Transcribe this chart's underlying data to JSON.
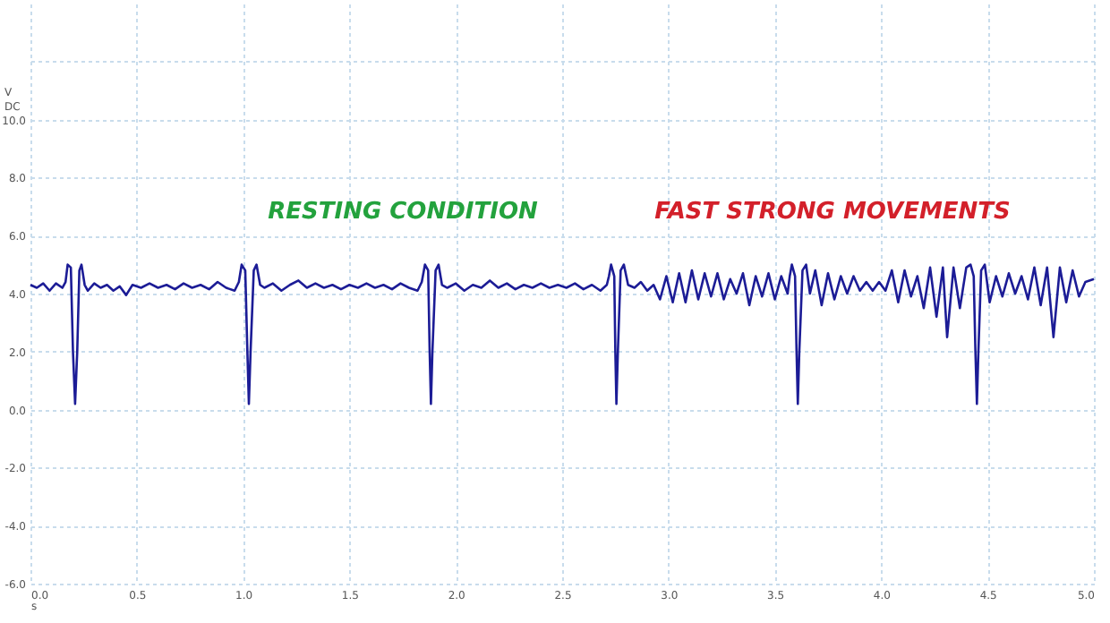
{
  "chart_data": {
    "type": "line",
    "xlabel": "s",
    "ylabel": "V DC",
    "annotations": [
      "RESTING CONDITION",
      "FAST STRONG MOVEMENTS"
    ],
    "x": [
      0.0,
      0.03,
      0.06,
      0.09,
      0.12,
      0.15,
      0.165,
      0.175,
      0.19,
      0.2,
      0.21,
      0.22,
      0.23,
      0.24,
      0.255,
      0.27,
      0.3,
      0.33,
      0.36,
      0.39,
      0.42,
      0.45,
      0.48,
      0.52,
      0.56,
      0.6,
      0.64,
      0.68,
      0.72,
      0.76,
      0.8,
      0.84,
      0.88,
      0.92,
      0.96,
      0.98,
      0.993,
      1.01,
      1.02,
      1.027,
      1.035,
      1.05,
      1.063,
      1.08,
      1.1,
      1.14,
      1.18,
      1.22,
      1.26,
      1.3,
      1.34,
      1.38,
      1.42,
      1.46,
      1.5,
      1.54,
      1.58,
      1.62,
      1.66,
      1.7,
      1.74,
      1.78,
      1.82,
      1.84,
      1.855,
      1.87,
      1.877,
      1.883,
      1.89,
      1.905,
      1.919,
      1.935,
      1.96,
      2.0,
      2.04,
      2.08,
      2.12,
      2.16,
      2.2,
      2.24,
      2.28,
      2.32,
      2.36,
      2.4,
      2.44,
      2.48,
      2.52,
      2.56,
      2.6,
      2.64,
      2.68,
      2.71,
      2.72,
      2.73,
      2.745,
      2.75,
      2.755,
      2.762,
      2.775,
      2.79,
      2.81,
      2.84,
      2.87,
      2.9,
      2.93,
      2.96,
      2.99,
      3.02,
      3.05,
      3.08,
      3.11,
      3.14,
      3.17,
      3.2,
      3.23,
      3.26,
      3.29,
      3.32,
      3.35,
      3.38,
      3.41,
      3.44,
      3.47,
      3.5,
      3.53,
      3.56,
      3.57,
      3.58,
      3.595,
      3.602,
      3.608,
      3.615,
      3.63,
      3.647,
      3.665,
      3.69,
      3.72,
      3.75,
      3.78,
      3.81,
      3.84,
      3.87,
      3.9,
      3.93,
      3.96,
      3.99,
      4.02,
      4.05,
      4.08,
      4.11,
      4.14,
      4.17,
      4.2,
      4.23,
      4.26,
      4.29,
      4.31,
      4.34,
      4.37,
      4.4,
      4.42,
      4.435,
      4.443,
      4.45,
      4.457,
      4.47,
      4.487,
      4.51,
      4.54,
      4.57,
      4.6,
      4.63,
      4.66,
      4.69,
      4.72,
      4.75,
      4.78,
      4.81,
      4.84,
      4.87,
      4.9,
      4.93,
      4.96,
      5.0
    ],
    "series": [
      {
        "color": "#1c1c96",
        "values": [
          4.3,
          4.2,
          4.35,
          4.1,
          4.35,
          4.2,
          4.4,
          5.0,
          4.9,
          2.0,
          0.2,
          2.0,
          4.8,
          5.0,
          4.3,
          4.1,
          4.35,
          4.2,
          4.3,
          4.1,
          4.25,
          3.95,
          4.3,
          4.2,
          4.35,
          4.2,
          4.3,
          4.15,
          4.35,
          4.2,
          4.3,
          4.15,
          4.4,
          4.2,
          4.1,
          4.4,
          5.0,
          4.8,
          2.0,
          0.2,
          2.0,
          4.8,
          5.0,
          4.3,
          4.2,
          4.35,
          4.1,
          4.3,
          4.45,
          4.2,
          4.35,
          4.2,
          4.3,
          4.15,
          4.3,
          4.2,
          4.35,
          4.2,
          4.3,
          4.15,
          4.35,
          4.2,
          4.1,
          4.4,
          5.0,
          4.8,
          2.0,
          0.2,
          2.0,
          4.8,
          5.0,
          4.3,
          4.2,
          4.35,
          4.1,
          4.3,
          4.2,
          4.45,
          4.2,
          4.35,
          4.15,
          4.3,
          4.2,
          4.35,
          4.2,
          4.3,
          4.2,
          4.35,
          4.15,
          4.3,
          4.1,
          4.3,
          4.6,
          5.0,
          4.6,
          2.0,
          0.2,
          2.0,
          4.8,
          5.0,
          4.3,
          4.2,
          4.4,
          4.1,
          4.3,
          3.8,
          4.6,
          3.7,
          4.7,
          3.7,
          4.8,
          3.8,
          4.7,
          3.9,
          4.7,
          3.8,
          4.5,
          4.0,
          4.7,
          3.6,
          4.6,
          3.9,
          4.7,
          3.8,
          4.6,
          4.0,
          4.6,
          5.0,
          4.6,
          2.0,
          0.2,
          2.0,
          4.8,
          5.0,
          4.0,
          4.8,
          3.6,
          4.7,
          3.8,
          4.6,
          4.0,
          4.6,
          4.1,
          4.4,
          4.1,
          4.4,
          4.1,
          4.8,
          3.7,
          4.8,
          3.9,
          4.6,
          3.5,
          4.9,
          3.2,
          4.9,
          2.5,
          4.9,
          3.5,
          4.9,
          5.0,
          4.6,
          2.0,
          0.2,
          2.0,
          4.8,
          5.0,
          3.7,
          4.6,
          3.9,
          4.7,
          4.0,
          4.6,
          3.8,
          4.9,
          3.6,
          4.9,
          2.5,
          4.9,
          3.7,
          4.8,
          3.9,
          4.4,
          4.5
        ]
      }
    ],
    "xlim": [
      0,
      5
    ],
    "xticks": [
      {
        "value": 0,
        "label": "0.0"
      },
      {
        "value": 0.5,
        "label": "0.5"
      },
      {
        "value": 1,
        "label": "1.0"
      },
      {
        "value": 1.5,
        "label": "1.5"
      },
      {
        "value": 2,
        "label": "2.0"
      },
      {
        "value": 2.5,
        "label": "2.5"
      },
      {
        "value": 3,
        "label": "3.0"
      },
      {
        "value": 3.5,
        "label": "3.5"
      },
      {
        "value": 4,
        "label": "4.0"
      },
      {
        "value": 4.5,
        "label": "4.5"
      },
      {
        "value": 5,
        "label": "5.0"
      }
    ],
    "ylim": [
      -6,
      14
    ],
    "yticks": [
      {
        "value": -6,
        "label": "-6.0"
      },
      {
        "value": -4,
        "label": "-4.0"
      },
      {
        "value": -2,
        "label": "-2.0"
      },
      {
        "value": 0,
        "label": "0.0"
      },
      {
        "value": 2,
        "label": "2.0"
      },
      {
        "value": 4,
        "label": "4.0"
      },
      {
        "value": 6,
        "label": "6.0"
      },
      {
        "value": 8,
        "label": "8.0"
      },
      {
        "value": 10,
        "label": "10.0"
      },
      {
        "value": 12,
        "label": null
      }
    ],
    "grid": true,
    "marker": "none",
    "line_style": "solid"
  }
}
